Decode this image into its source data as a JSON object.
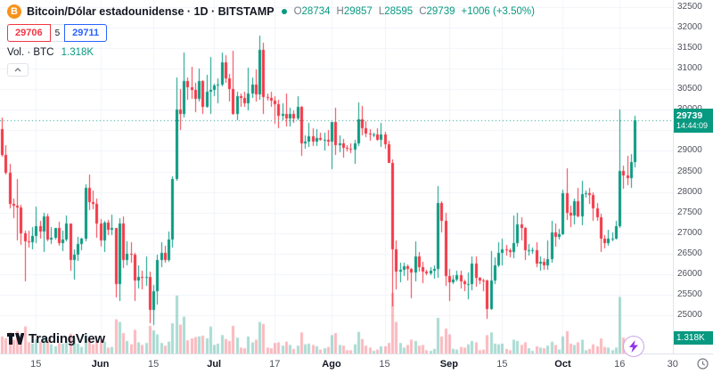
{
  "header": {
    "symbol_title": "Bitcoin/Dólar estadounidense · 1D · BITSTAMP",
    "ohlc_items": [
      {
        "label": "O",
        "value": "28734"
      },
      {
        "label": "H",
        "value": "29857"
      },
      {
        "label": "L",
        "value": "28595"
      },
      {
        "label": "C",
        "value": "29739"
      }
    ],
    "change_text": "+1006 (+3.50%)",
    "sell_price": "29706",
    "spread": "5",
    "buy_price": "29711",
    "volume_label": "Vol. · BTC",
    "volume_value": "1.318K",
    "bitcoin_icon_letter": "B"
  },
  "price_scale": {
    "price_badge": {
      "price": "29739",
      "countdown": "14:44:09"
    },
    "volume_badge": "1.318K"
  },
  "footer": {
    "logo_text": "TradingView"
  },
  "colors": {
    "up_green": "#089981",
    "down_red": "#f23645",
    "buy_blue": "#2962ff",
    "sell_red": "#f23645",
    "bitcoin_orange": "#f7931a",
    "flash_purple": "#9333ea",
    "grid": "#f0f3fa",
    "badge_green": "#089981"
  },
  "chart_data": {
    "type": "candlestick",
    "title": "Bitcoin/Dólar estadounidense · 1D · BITSTAMP",
    "exchange": "BITSTAMP",
    "interval": "1D",
    "legend_ohlc": {
      "open": 28734,
      "high": 29857,
      "low": 28595,
      "close": 29739,
      "change": 1006,
      "change_pct": 3.5
    },
    "current_price": 29739,
    "current_volume_btc": 1318,
    "ylim": [
      24060,
      32680
    ],
    "price_axis_ticks": [
      32500,
      32000,
      31500,
      31000,
      30500,
      30000,
      29500,
      29000,
      28500,
      28000,
      27500,
      27000,
      26500,
      26000,
      25500,
      25000
    ],
    "x_axis_labels": [
      {
        "text": "15",
        "index": 9,
        "emphasis": false
      },
      {
        "text": "Jun",
        "index": 26,
        "emphasis": true
      },
      {
        "text": "15",
        "index": 40,
        "emphasis": false
      },
      {
        "text": "Jul",
        "index": 56,
        "emphasis": true
      },
      {
        "text": "17",
        "index": 72,
        "emphasis": false
      },
      {
        "text": "Ago",
        "index": 87,
        "emphasis": true
      },
      {
        "text": "15",
        "index": 101,
        "emphasis": false
      },
      {
        "text": "Sep",
        "index": 118,
        "emphasis": true
      },
      {
        "text": "15",
        "index": 132,
        "emphasis": false
      },
      {
        "text": "Oct",
        "index": 148,
        "emphasis": true
      },
      {
        "text": "16",
        "index": 163,
        "emphasis": false
      },
      {
        "text": "30",
        "index": 177,
        "emphasis": false
      }
    ],
    "candles_ohlcv": [
      [
        29530,
        29820,
        28850,
        28900,
        2600
      ],
      [
        28900,
        29150,
        28420,
        28460,
        2300
      ],
      [
        28460,
        28680,
        27590,
        27700,
        3200
      ],
      [
        27700,
        27830,
        27350,
        27660,
        2100
      ],
      [
        27660,
        28320,
        26810,
        27620,
        3400
      ],
      [
        27620,
        27680,
        26700,
        27000,
        2700
      ],
      [
        27000,
        27060,
        25810,
        26800,
        4100
      ],
      [
        26800,
        27050,
        26650,
        26780,
        1700
      ],
      [
        26780,
        27150,
        26600,
        26930,
        1500
      ],
      [
        26930,
        27650,
        26750,
        27170,
        2200
      ],
      [
        27170,
        27290,
        26870,
        27030,
        1800
      ],
      [
        27030,
        27480,
        26540,
        27400,
        2500
      ],
      [
        27400,
        27470,
        26800,
        26830,
        2000
      ],
      [
        26830,
        27150,
        26720,
        26890,
        1400
      ],
      [
        26890,
        27130,
        26830,
        27120,
        1100
      ],
      [
        27120,
        27280,
        26680,
        26750,
        1600
      ],
      [
        26750,
        27060,
        26550,
        26850,
        1500
      ],
      [
        26850,
        27430,
        26800,
        27220,
        1900
      ],
      [
        27220,
        27230,
        26080,
        26330,
        3000
      ],
      [
        26330,
        26600,
        25870,
        26480,
        2400
      ],
      [
        26480,
        26900,
        26320,
        26720,
        1500
      ],
      [
        26720,
        26890,
        26580,
        26870,
        1000
      ],
      [
        26870,
        28190,
        26800,
        28090,
        2800
      ],
      [
        28090,
        28430,
        27550,
        27750,
        2200
      ],
      [
        27750,
        28040,
        27580,
        27700,
        1400
      ],
      [
        27700,
        27830,
        26880,
        27220,
        2100
      ],
      [
        27220,
        27330,
        26670,
        26820,
        2000
      ],
      [
        26820,
        27300,
        26530,
        27250,
        1800
      ],
      [
        27250,
        27310,
        26940,
        27080,
        900
      ],
      [
        27080,
        27450,
        26950,
        27120,
        1000
      ],
      [
        27120,
        27130,
        25420,
        25750,
        5200
      ],
      [
        25750,
        27350,
        25350,
        27240,
        4800
      ],
      [
        27240,
        27400,
        26150,
        26350,
        3100
      ],
      [
        26350,
        26800,
        26220,
        26500,
        1900
      ],
      [
        26500,
        26780,
        26270,
        26480,
        1400
      ],
      [
        26480,
        26520,
        25350,
        25850,
        3600
      ],
      [
        25850,
        26220,
        25650,
        25930,
        1700
      ],
      [
        25930,
        26080,
        25630,
        25900,
        1300
      ],
      [
        25900,
        26430,
        25700,
        25920,
        1600
      ],
      [
        25920,
        26050,
        24800,
        25120,
        4200
      ],
      [
        25120,
        25740,
        24750,
        25570,
        3500
      ],
      [
        25570,
        26470,
        25250,
        26330,
        2900
      ],
      [
        26330,
        26770,
        26170,
        26510,
        1600
      ],
      [
        26510,
        26690,
        26270,
        26340,
        1200
      ],
      [
        26340,
        27030,
        26290,
        26850,
        1800
      ],
      [
        26850,
        28390,
        26650,
        28310,
        4600
      ],
      [
        28310,
        30800,
        28280,
        30000,
        8800
      ],
      [
        30000,
        30500,
        29500,
        29900,
        4400
      ],
      [
        29900,
        31400,
        29810,
        30700,
        5600
      ],
      [
        30700,
        30800,
        30250,
        30550,
        2000
      ],
      [
        30550,
        31050,
        30280,
        30480,
        2300
      ],
      [
        30480,
        30650,
        29950,
        30270,
        2500
      ],
      [
        30270,
        31000,
        30200,
        30700,
        2600
      ],
      [
        30700,
        30720,
        29900,
        30080,
        2700
      ],
      [
        30080,
        30850,
        30050,
        30450,
        2300
      ],
      [
        30450,
        31280,
        29900,
        30480,
        4100
      ],
      [
        30480,
        30640,
        30330,
        30590,
        1300
      ],
      [
        30590,
        30780,
        30170,
        30620,
        1500
      ],
      [
        30620,
        31390,
        30570,
        31150,
        2800
      ],
      [
        31150,
        31330,
        30650,
        30780,
        2200
      ],
      [
        30780,
        30880,
        30200,
        30510,
        1900
      ],
      [
        30510,
        31450,
        29870,
        29910,
        4200
      ],
      [
        29910,
        30440,
        29740,
        30340,
        2400
      ],
      [
        30340,
        30400,
        30070,
        30290,
        900
      ],
      [
        30290,
        30440,
        30080,
        30170,
        800
      ],
      [
        30170,
        31040,
        29980,
        30410,
        2600
      ],
      [
        30410,
        30800,
        30300,
        30620,
        1700
      ],
      [
        30620,
        30980,
        30200,
        30380,
        2100
      ],
      [
        30380,
        31820,
        30250,
        31470,
        4800
      ],
      [
        31470,
        31630,
        29900,
        30320,
        4500
      ],
      [
        30320,
        30390,
        30230,
        30290,
        900
      ],
      [
        30290,
        30440,
        30080,
        30230,
        800
      ],
      [
        30230,
        30340,
        29670,
        30140,
        1600
      ],
      [
        30140,
        30240,
        29560,
        29860,
        1700
      ],
      [
        29860,
        30170,
        29750,
        29910,
        1200
      ],
      [
        29910,
        30400,
        29600,
        29800,
        1800
      ],
      [
        29800,
        30050,
        29600,
        29910,
        1300
      ],
      [
        29910,
        29990,
        29680,
        29790,
        700
      ],
      [
        29790,
        30340,
        29740,
        30080,
        1200
      ],
      [
        30080,
        30090,
        28890,
        29180,
        3200
      ],
      [
        29180,
        29370,
        29050,
        29230,
        1400
      ],
      [
        29230,
        29680,
        29100,
        29350,
        1500
      ],
      [
        29350,
        29560,
        29110,
        29220,
        1300
      ],
      [
        29220,
        29530,
        29120,
        29320,
        1100
      ],
      [
        29320,
        29450,
        29260,
        29280,
        600
      ],
      [
        29280,
        29450,
        29010,
        29280,
        800
      ],
      [
        29280,
        29500,
        29110,
        29230,
        1000
      ],
      [
        29230,
        29700,
        28550,
        29710,
        2800
      ],
      [
        29710,
        30050,
        28900,
        29150,
        3100
      ],
      [
        29150,
        29380,
        28960,
        29180,
        1300
      ],
      [
        29180,
        29300,
        28830,
        29080,
        1200
      ],
      [
        29080,
        29130,
        28980,
        29050,
        500
      ],
      [
        29050,
        29180,
        28950,
        29040,
        500
      ],
      [
        29040,
        29270,
        28680,
        29180,
        1400
      ],
      [
        29180,
        30180,
        29110,
        29770,
        3300
      ],
      [
        29770,
        30100,
        29370,
        29560,
        2200
      ],
      [
        29560,
        29720,
        29340,
        29430,
        1200
      ],
      [
        29430,
        29540,
        29250,
        29400,
        900
      ],
      [
        29400,
        29450,
        29340,
        29410,
        400
      ],
      [
        29410,
        29560,
        29260,
        29280,
        600
      ],
      [
        29280,
        29680,
        29100,
        29400,
        1100
      ],
      [
        29400,
        29460,
        29050,
        29170,
        1100
      ],
      [
        29170,
        29240,
        28700,
        28700,
        1600
      ],
      [
        28700,
        28790,
        25200,
        26600,
        9200
      ],
      [
        26600,
        26820,
        25630,
        26050,
        4800
      ],
      [
        26050,
        26270,
        25800,
        26100,
        1600
      ],
      [
        26100,
        26280,
        25950,
        26180,
        900
      ],
      [
        26180,
        26240,
        25830,
        26120,
        1300
      ],
      [
        26120,
        26140,
        25400,
        26030,
        2100
      ],
      [
        26030,
        26790,
        25810,
        26430,
        1900
      ],
      [
        26430,
        26540,
        26050,
        26160,
        1200
      ],
      [
        26160,
        26290,
        25780,
        26050,
        1300
      ],
      [
        26050,
        26110,
        25960,
        26010,
        500
      ],
      [
        26010,
        26170,
        25970,
        26090,
        400
      ],
      [
        26090,
        26210,
        25880,
        26120,
        700
      ],
      [
        26120,
        28140,
        25910,
        27720,
        5400
      ],
      [
        27720,
        27770,
        27020,
        27300,
        2600
      ],
      [
        27300,
        27490,
        25700,
        25940,
        3800
      ],
      [
        25940,
        26130,
        25350,
        25800,
        2900
      ],
      [
        25800,
        25970,
        25750,
        25870,
        700
      ],
      [
        25870,
        26080,
        25810,
        25970,
        600
      ],
      [
        25970,
        26090,
        25650,
        25820,
        1000
      ],
      [
        25820,
        25870,
        25580,
        25750,
        900
      ],
      [
        25750,
        26030,
        25390,
        25760,
        1400
      ],
      [
        25760,
        26420,
        25600,
        26250,
        1900
      ],
      [
        26250,
        26420,
        25680,
        25900,
        1700
      ],
      [
        25900,
        25930,
        25760,
        25840,
        500
      ],
      [
        25840,
        25890,
        25570,
        25830,
        600
      ],
      [
        25830,
        25870,
        24900,
        25150,
        2800
      ],
      [
        25150,
        26550,
        25130,
        25830,
        3200
      ],
      [
        25830,
        26400,
        25750,
        26220,
        1500
      ],
      [
        26220,
        26770,
        26160,
        26520,
        1400
      ],
      [
        26520,
        26870,
        26220,
        26600,
        1500
      ],
      [
        26600,
        26700,
        26450,
        26570,
        700
      ],
      [
        26570,
        26620,
        26400,
        26530,
        500
      ],
      [
        26530,
        27430,
        26380,
        26760,
        2100
      ],
      [
        26760,
        27490,
        26660,
        27210,
        1900
      ],
      [
        27210,
        27390,
        26820,
        27120,
        1300
      ],
      [
        27120,
        27150,
        26350,
        26570,
        1700
      ],
      [
        26570,
        26740,
        26450,
        26570,
        800
      ],
      [
        26570,
        26640,
        26500,
        26580,
        400
      ],
      [
        26580,
        26770,
        26170,
        26250,
        1100
      ],
      [
        26250,
        26430,
        26070,
        26300,
        900
      ],
      [
        26300,
        26390,
        26100,
        26210,
        800
      ],
      [
        26210,
        26820,
        26110,
        26360,
        1200
      ],
      [
        26360,
        27300,
        26280,
        27020,
        1800
      ],
      [
        27020,
        27230,
        26670,
        26910,
        1300
      ],
      [
        26910,
        27100,
        26850,
        26960,
        600
      ],
      [
        26960,
        28050,
        26950,
        27970,
        2600
      ],
      [
        27970,
        28580,
        27320,
        27500,
        3400
      ],
      [
        27500,
        27660,
        27150,
        27430,
        1500
      ],
      [
        27430,
        27830,
        27200,
        27780,
        1300
      ],
      [
        27780,
        28100,
        27390,
        27410,
        1700
      ],
      [
        27410,
        28270,
        27180,
        27950,
        2100
      ],
      [
        27950,
        28030,
        27870,
        27970,
        500
      ],
      [
        27970,
        28100,
        27700,
        27920,
        700
      ],
      [
        27920,
        27990,
        27290,
        27590,
        1400
      ],
      [
        27590,
        27730,
        27290,
        27390,
        1100
      ],
      [
        27390,
        27470,
        26540,
        26870,
        2300
      ],
      [
        26870,
        26940,
        26620,
        26760,
        1000
      ],
      [
        26760,
        27080,
        26680,
        26860,
        900
      ],
      [
        26860,
        27010,
        26800,
        26860,
        500
      ],
      [
        26860,
        27290,
        26830,
        27160,
        900
      ],
      [
        27160,
        30000,
        27130,
        28520,
        8600
      ],
      [
        28520,
        28650,
        28080,
        28410,
        2400
      ],
      [
        28410,
        28890,
        28170,
        28330,
        2000
      ],
      [
        28330,
        28930,
        28100,
        28720,
        2200
      ],
      [
        28734,
        29857,
        28595,
        29739,
        1318
      ]
    ]
  }
}
